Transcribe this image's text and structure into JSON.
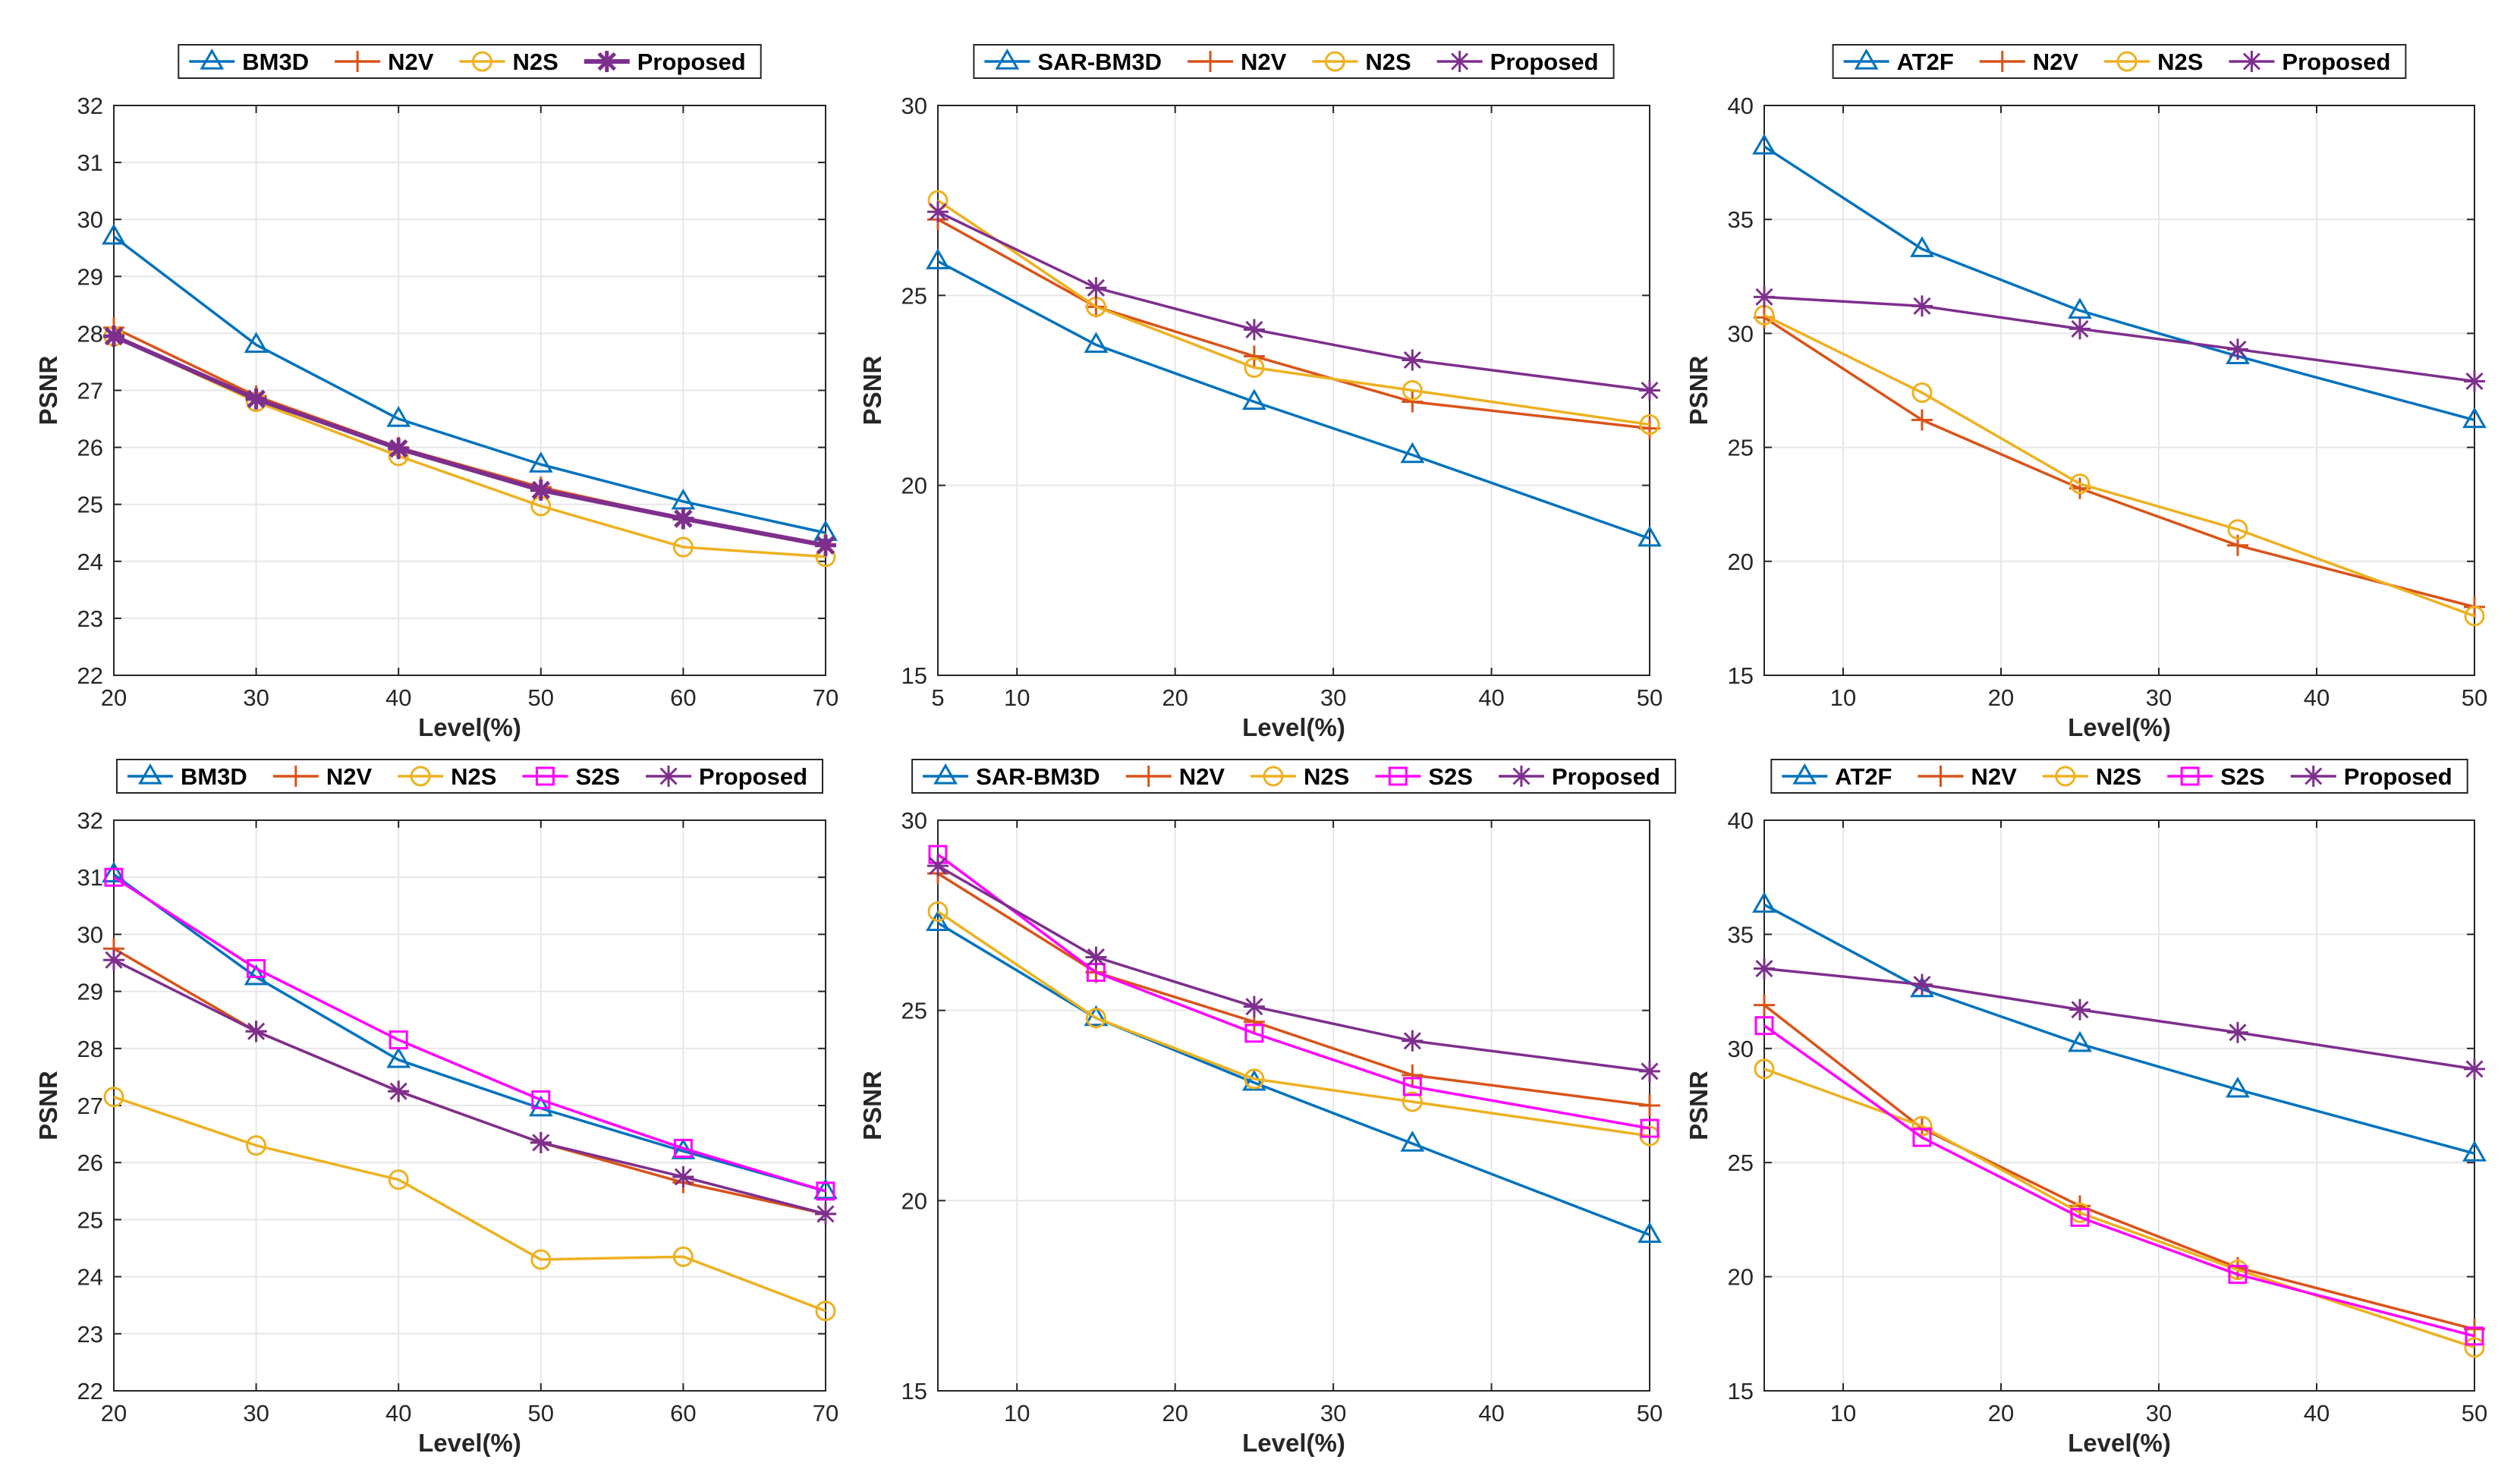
{
  "chart_data": [
    {
      "type": "line",
      "xlabel": "Level(%)",
      "ylabel": "PSNR",
      "xlim": [
        20,
        70
      ],
      "ylim": [
        22,
        32
      ],
      "xticks": [
        20,
        30,
        40,
        50,
        60,
        70
      ],
      "yticks": [
        22,
        23,
        24,
        25,
        26,
        27,
        28,
        29,
        30,
        31,
        32
      ],
      "grid": true,
      "legend_position": "top-center",
      "series": [
        {
          "name": "BM3D",
          "color": "#0072BD",
          "marker": "triangle",
          "x": [
            20,
            30,
            40,
            50,
            60,
            70
          ],
          "y": [
            29.7,
            27.8,
            26.5,
            25.7,
            25.05,
            24.5
          ]
        },
        {
          "name": "N2V",
          "color": "#D95319",
          "marker": "plus",
          "x": [
            20,
            30,
            40,
            50,
            60,
            70
          ],
          "y": [
            28.1,
            26.9,
            26.0,
            25.3,
            24.75,
            24.3
          ]
        },
        {
          "name": "N2S",
          "color": "#EDB120",
          "marker": "circle",
          "x": [
            20,
            30,
            40,
            50,
            60,
            70
          ],
          "y": [
            27.95,
            26.8,
            25.85,
            24.97,
            24.25,
            24.08
          ]
        },
        {
          "name": "Proposed",
          "color": "#7E2F8E",
          "marker": "star",
          "bold": true,
          "x": [
            20,
            30,
            40,
            50,
            60,
            70
          ],
          "y": [
            27.95,
            26.85,
            25.98,
            25.25,
            24.75,
            24.28
          ]
        }
      ]
    },
    {
      "type": "line",
      "xlabel": "Level(%)",
      "ylabel": "PSNR",
      "xlim": [
        5,
        50
      ],
      "ylim": [
        15,
        30
      ],
      "xticks": [
        5,
        10,
        20,
        30,
        40,
        50
      ],
      "yticks": [
        15,
        20,
        25,
        30
      ],
      "grid": true,
      "legend_position": "top-center",
      "series": [
        {
          "name": "SAR-BM3D",
          "color": "#0072BD",
          "marker": "triangle",
          "x": [
            5,
            15,
            25,
            35,
            50
          ],
          "y": [
            25.9,
            23.7,
            22.2,
            20.8,
            18.6
          ]
        },
        {
          "name": "N2V",
          "color": "#D95319",
          "marker": "plus",
          "x": [
            5,
            15,
            25,
            35,
            50
          ],
          "y": [
            27.0,
            24.7,
            23.4,
            22.2,
            21.5
          ]
        },
        {
          "name": "N2S",
          "color": "#EDB120",
          "marker": "circle",
          "x": [
            5,
            15,
            25,
            35,
            50
          ],
          "y": [
            27.5,
            24.7,
            23.1,
            22.5,
            21.6
          ]
        },
        {
          "name": "Proposed",
          "color": "#7E2F8E",
          "marker": "star",
          "x": [
            5,
            15,
            25,
            35,
            50
          ],
          "y": [
            27.2,
            25.2,
            24.1,
            23.3,
            22.5
          ]
        }
      ]
    },
    {
      "type": "line",
      "xlabel": "Level(%)",
      "ylabel": "PSNR",
      "xlim": [
        5,
        50
      ],
      "ylim": [
        15,
        40
      ],
      "xticks": [
        10,
        20,
        30,
        40,
        50
      ],
      "yticks": [
        15,
        20,
        25,
        30,
        35,
        40
      ],
      "grid": true,
      "legend_position": "top-center",
      "series": [
        {
          "name": "AT2F",
          "color": "#0072BD",
          "marker": "triangle",
          "x": [
            5,
            15,
            25,
            35,
            50
          ],
          "y": [
            38.2,
            33.7,
            31.0,
            29.0,
            26.2
          ]
        },
        {
          "name": "N2V",
          "color": "#D95319",
          "marker": "plus",
          "x": [
            5,
            15,
            25,
            35,
            50
          ],
          "y": [
            30.7,
            26.2,
            23.2,
            20.7,
            18.0
          ]
        },
        {
          "name": "N2S",
          "color": "#EDB120",
          "marker": "circle",
          "x": [
            5,
            15,
            25,
            35,
            50
          ],
          "y": [
            30.8,
            27.4,
            23.4,
            21.4,
            17.6
          ]
        },
        {
          "name": "Proposed",
          "color": "#7E2F8E",
          "marker": "star",
          "x": [
            5,
            15,
            25,
            35,
            50
          ],
          "y": [
            31.6,
            31.2,
            30.2,
            29.3,
            27.9
          ]
        }
      ]
    },
    {
      "type": "line",
      "xlabel": "Level(%)",
      "ylabel": "PSNR",
      "xlim": [
        20,
        70
      ],
      "ylim": [
        22,
        32
      ],
      "xticks": [
        20,
        30,
        40,
        50,
        60,
        70
      ],
      "yticks": [
        22,
        23,
        24,
        25,
        26,
        27,
        28,
        29,
        30,
        31,
        32
      ],
      "grid": true,
      "legend_position": "top-center",
      "series": [
        {
          "name": "BM3D",
          "color": "#0072BD",
          "marker": "triangle",
          "x": [
            20,
            30,
            40,
            50,
            60,
            70
          ],
          "y": [
            31.05,
            29.25,
            27.8,
            26.95,
            26.2,
            25.5
          ]
        },
        {
          "name": "N2V",
          "color": "#D95319",
          "marker": "plus",
          "x": [
            20,
            30,
            40,
            50,
            60,
            70
          ],
          "y": [
            29.75,
            28.3,
            27.25,
            26.35,
            25.65,
            25.1
          ]
        },
        {
          "name": "N2S",
          "color": "#EDB120",
          "marker": "circle",
          "x": [
            20,
            30,
            40,
            50,
            60,
            70
          ],
          "y": [
            27.15,
            26.3,
            25.7,
            24.3,
            24.35,
            23.4
          ]
        },
        {
          "name": "S2S",
          "color": "#FF00FF",
          "marker": "square",
          "x": [
            20,
            30,
            40,
            50,
            60,
            70
          ],
          "y": [
            31.0,
            29.4,
            28.15,
            27.1,
            26.25,
            25.5
          ]
        },
        {
          "name": "Proposed",
          "color": "#7E2F8E",
          "marker": "star",
          "x": [
            20,
            30,
            40,
            50,
            60,
            70
          ],
          "y": [
            29.55,
            28.3,
            27.25,
            26.35,
            25.75,
            25.1
          ]
        }
      ]
    },
    {
      "type": "line",
      "xlabel": "Level(%)",
      "ylabel": "PSNR",
      "xlim": [
        5,
        50
      ],
      "ylim": [
        15,
        30
      ],
      "xticks": [
        10,
        20,
        30,
        40,
        50
      ],
      "yticks": [
        15,
        20,
        25,
        30
      ],
      "grid": true,
      "legend_position": "top-center",
      "series": [
        {
          "name": "SAR-BM3D",
          "color": "#0072BD",
          "marker": "triangle",
          "x": [
            5,
            15,
            25,
            35,
            50
          ],
          "y": [
            27.3,
            24.8,
            23.1,
            21.5,
            19.1
          ]
        },
        {
          "name": "N2V",
          "color": "#D95319",
          "marker": "plus",
          "x": [
            5,
            15,
            25,
            35,
            50
          ],
          "y": [
            28.6,
            26.0,
            24.7,
            23.3,
            22.5
          ]
        },
        {
          "name": "N2S",
          "color": "#EDB120",
          "marker": "circle",
          "x": [
            5,
            15,
            25,
            35,
            50
          ],
          "y": [
            27.6,
            24.8,
            23.2,
            22.6,
            21.7
          ]
        },
        {
          "name": "S2S",
          "color": "#FF00FF",
          "marker": "square",
          "x": [
            5,
            15,
            25,
            35,
            50
          ],
          "y": [
            29.1,
            26.0,
            24.4,
            23.0,
            21.9
          ]
        },
        {
          "name": "Proposed",
          "color": "#7E2F8E",
          "marker": "star",
          "x": [
            5,
            15,
            25,
            35,
            50
          ],
          "y": [
            28.8,
            26.4,
            25.1,
            24.2,
            23.4
          ]
        }
      ]
    },
    {
      "type": "line",
      "xlabel": "Level(%)",
      "ylabel": "PSNR",
      "xlim": [
        5,
        50
      ],
      "ylim": [
        15,
        40
      ],
      "xticks": [
        10,
        20,
        30,
        40,
        50
      ],
      "yticks": [
        15,
        20,
        25,
        30,
        35,
        40
      ],
      "grid": true,
      "legend_position": "top-center",
      "series": [
        {
          "name": "AT2F",
          "color": "#0072BD",
          "marker": "triangle",
          "x": [
            5,
            15,
            25,
            35,
            50
          ],
          "y": [
            36.3,
            32.6,
            30.2,
            28.2,
            25.4
          ]
        },
        {
          "name": "N2V",
          "color": "#D95319",
          "marker": "plus",
          "x": [
            5,
            15,
            25,
            35,
            50
          ],
          "y": [
            31.9,
            26.5,
            23.1,
            20.4,
            17.7
          ]
        },
        {
          "name": "N2S",
          "color": "#EDB120",
          "marker": "circle",
          "x": [
            5,
            15,
            25,
            35,
            50
          ],
          "y": [
            29.1,
            26.6,
            22.8,
            20.3,
            16.9
          ]
        },
        {
          "name": "S2S",
          "color": "#FF00FF",
          "marker": "square",
          "x": [
            5,
            15,
            25,
            35,
            50
          ],
          "y": [
            31.0,
            26.1,
            22.6,
            20.1,
            17.4
          ]
        },
        {
          "name": "Proposed",
          "color": "#7E2F8E",
          "marker": "star",
          "x": [
            5,
            15,
            25,
            35,
            50
          ],
          "y": [
            33.5,
            32.8,
            31.7,
            30.7,
            29.1
          ]
        }
      ]
    }
  ]
}
